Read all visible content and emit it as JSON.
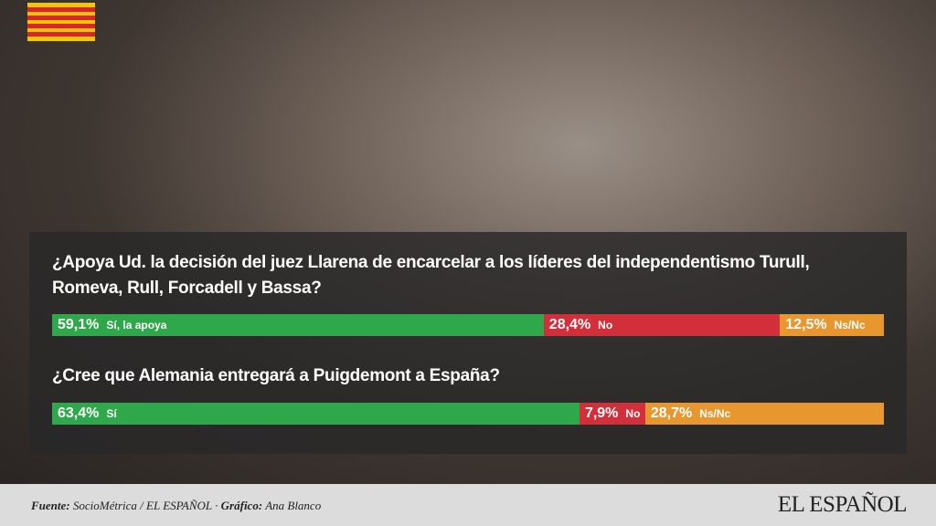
{
  "chart_data": [
    {
      "type": "stacked-bar",
      "title": "¿Apoya Ud. la decisión del juez Llarena de encarcelar a los líderes del independentismo Turull, Romeva, Rull, Forcadell y Bassa?",
      "xlim": [
        0,
        100
      ],
      "series": [
        {
          "name": "Sí, la apoya",
          "color": "#2ea84a",
          "values": [
            59.1
          ],
          "value_labels": [
            "59,1%"
          ]
        },
        {
          "name": "No",
          "color": "#d12f3a",
          "values": [
            28.4
          ],
          "value_labels": [
            "28,4%"
          ]
        },
        {
          "name": "Ns/Nc",
          "color": "#e8962e",
          "values": [
            12.5
          ],
          "value_labels": [
            "12,5%"
          ]
        }
      ]
    },
    {
      "type": "stacked-bar",
      "title": "¿Cree que Alemania entregará a Puigdemont a España?",
      "xlim": [
        0,
        100
      ],
      "series": [
        {
          "name": "Sí",
          "color": "#2ea84a",
          "values": [
            63.4
          ],
          "value_labels": [
            "63,4%"
          ]
        },
        {
          "name": "No",
          "color": "#d12f3a",
          "values": [
            7.9
          ],
          "value_labels": [
            "7,9%"
          ]
        },
        {
          "name": "Ns/Nc",
          "color": "#e8962e",
          "values": [
            28.7
          ],
          "value_labels": [
            "28,7%"
          ]
        }
      ]
    }
  ],
  "footer": {
    "source_label": "Fuente:",
    "source": "SocioMétrica / EL ESPAÑOL",
    "separator": "·",
    "credit_label": "Gráfico:",
    "credit": "Ana Blanco"
  },
  "logo": "EL ESPAÑOL"
}
